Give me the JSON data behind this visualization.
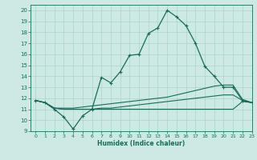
{
  "xlabel": "Humidex (Indice chaleur)",
  "ylabel": "",
  "background_color": "#cce9e4",
  "grid_color": "#aad4cc",
  "line_color": "#1a6b5a",
  "xlim": [
    -0.5,
    23
  ],
  "ylim": [
    9,
    20.5
  ],
  "xticks": [
    0,
    1,
    2,
    3,
    4,
    5,
    6,
    7,
    8,
    9,
    10,
    11,
    12,
    13,
    14,
    15,
    16,
    17,
    18,
    19,
    20,
    21,
    22,
    23
  ],
  "yticks": [
    9,
    10,
    11,
    12,
    13,
    14,
    15,
    16,
    17,
    18,
    19,
    20
  ],
  "series": [
    {
      "x": [
        0,
        1,
        2,
        3,
        4,
        5,
        6,
        7,
        8,
        9,
        10,
        11,
        12,
        13,
        14,
        15,
        16,
        17,
        18,
        19,
        20,
        21,
        22,
        23
      ],
      "y": [
        11.8,
        11.6,
        11.0,
        10.3,
        9.2,
        10.4,
        11.0,
        13.9,
        13.4,
        14.4,
        15.9,
        16.0,
        17.9,
        18.4,
        20.0,
        19.4,
        18.6,
        17.0,
        14.9,
        14.0,
        13.0,
        13.0,
        11.8,
        11.6
      ],
      "marker": true
    },
    {
      "x": [
        0,
        1,
        2,
        3,
        4,
        5,
        6,
        7,
        8,
        9,
        10,
        11,
        12,
        13,
        14,
        15,
        16,
        17,
        18,
        19,
        20,
        21,
        22,
        23
      ],
      "y": [
        11.8,
        11.6,
        11.1,
        11.1,
        11.1,
        11.2,
        11.3,
        11.4,
        11.5,
        11.6,
        11.7,
        11.8,
        11.9,
        12.0,
        12.1,
        12.3,
        12.5,
        12.7,
        12.9,
        13.1,
        13.2,
        13.2,
        11.9,
        11.6
      ],
      "marker": false
    },
    {
      "x": [
        0,
        1,
        2,
        3,
        4,
        5,
        6,
        7,
        8,
        9,
        10,
        11,
        12,
        13,
        14,
        15,
        16,
        17,
        18,
        19,
        20,
        21,
        22,
        23
      ],
      "y": [
        11.8,
        11.6,
        11.1,
        11.0,
        11.0,
        11.0,
        11.0,
        11.1,
        11.1,
        11.2,
        11.3,
        11.4,
        11.5,
        11.6,
        11.7,
        11.8,
        11.9,
        12.0,
        12.1,
        12.2,
        12.3,
        12.3,
        11.8,
        11.6
      ],
      "marker": false
    },
    {
      "x": [
        0,
        1,
        2,
        3,
        4,
        5,
        6,
        7,
        8,
        9,
        10,
        11,
        12,
        13,
        14,
        15,
        16,
        17,
        18,
        19,
        20,
        21,
        22,
        23
      ],
      "y": [
        11.8,
        11.6,
        11.1,
        11.0,
        11.0,
        11.0,
        11.0,
        11.0,
        11.0,
        11.0,
        11.0,
        11.0,
        11.0,
        11.0,
        11.0,
        11.0,
        11.0,
        11.0,
        11.0,
        11.0,
        11.0,
        11.0,
        11.7,
        11.6
      ],
      "marker": false
    }
  ]
}
